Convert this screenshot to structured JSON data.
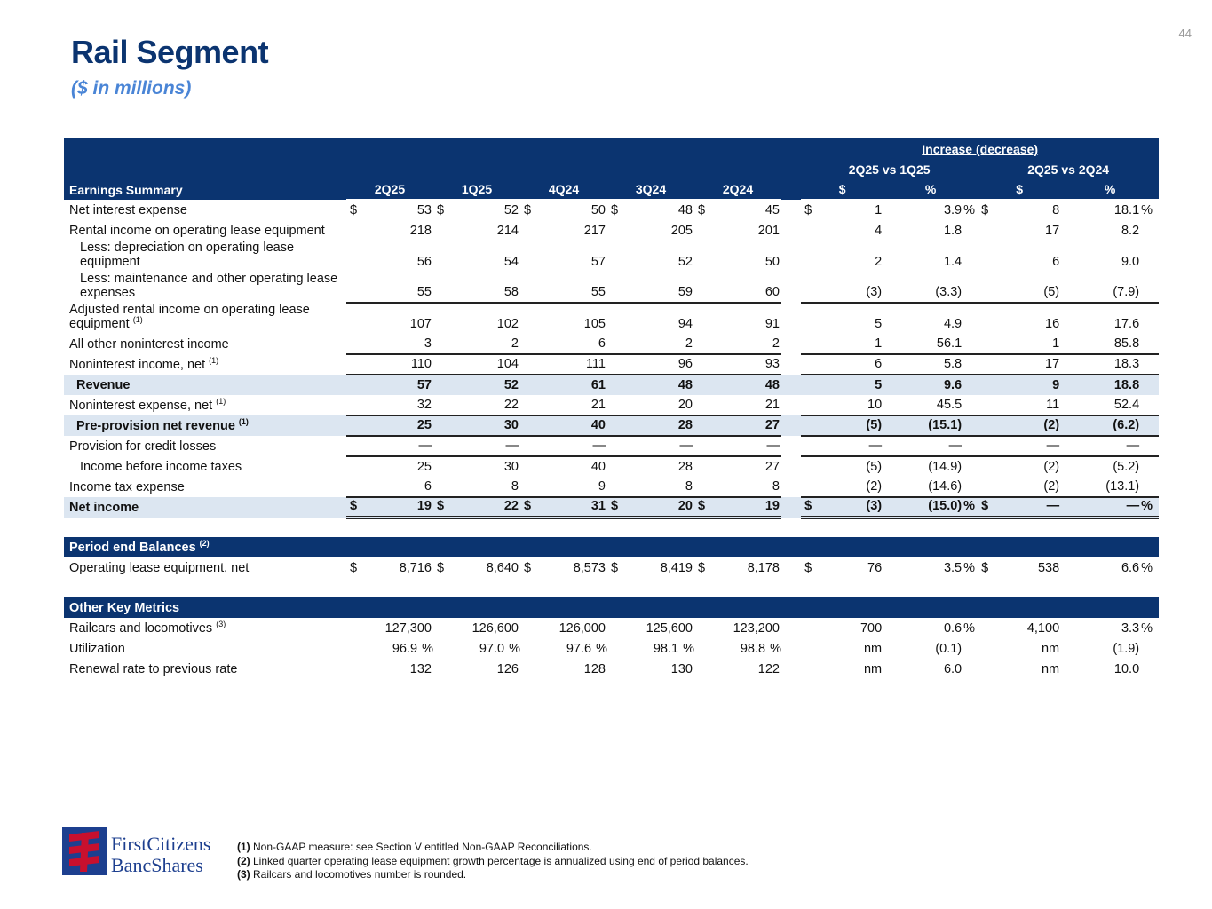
{
  "page_number": "44",
  "title": "Rail Segment",
  "subtitle": "($ in millions)",
  "header": {
    "increase_decrease": "Increase (decrease)",
    "cmp1": "2Q25 vs 1Q25",
    "cmp2": "2Q25 vs 2Q24",
    "section": "Earnings Summary",
    "quarters": [
      "2Q25",
      "1Q25",
      "4Q24",
      "3Q24",
      "2Q24"
    ],
    "dollar": "$",
    "percent": "%"
  },
  "rows": [
    {
      "label": "Net interest expense",
      "dollar": true,
      "vals": [
        "53",
        "52",
        "50",
        "48",
        "45"
      ],
      "cmp": [
        "1",
        "3.9",
        "8",
        "18.1"
      ],
      "pct": true
    },
    {
      "label": "Rental income on operating lease equipment",
      "vals": [
        "218",
        "214",
        "217",
        "205",
        "201"
      ],
      "cmp": [
        "4",
        "1.8",
        "17",
        "8.2"
      ]
    },
    {
      "label": "Less: depreciation on operating lease equipment",
      "indent": true,
      "vals": [
        "56",
        "54",
        "57",
        "52",
        "50"
      ],
      "cmp": [
        "2",
        "1.4",
        "6",
        "9.0"
      ]
    },
    {
      "label": "Less: maintenance and other operating lease expenses",
      "indent": true,
      "bot": true,
      "vals": [
        "55",
        "58",
        "55",
        "59",
        "60"
      ],
      "cmp": [
        "(3)",
        "(3.3)",
        "(5)",
        "(7.9)"
      ]
    },
    {
      "label": "Adjusted rental income on operating lease equipment",
      "sup": "(1)",
      "vals": [
        "107",
        "102",
        "105",
        "94",
        "91"
      ],
      "cmp": [
        "5",
        "4.9",
        "16",
        "17.6"
      ]
    },
    {
      "label": "All other noninterest income",
      "bot": true,
      "vals": [
        "3",
        "2",
        "6",
        "2",
        "2"
      ],
      "cmp": [
        "1",
        "56.1",
        "1",
        "85.8"
      ]
    },
    {
      "label": "Noninterest income, net",
      "sup": "(1)",
      "bot": true,
      "vals": [
        "110",
        "104",
        "111",
        "96",
        "93"
      ],
      "cmp": [
        "6",
        "5.8",
        "17",
        "18.3"
      ]
    },
    {
      "label": "Revenue",
      "hl": true,
      "vals": [
        "57",
        "52",
        "61",
        "48",
        "48"
      ],
      "cmp": [
        "5",
        "9.6",
        "9",
        "18.8"
      ]
    },
    {
      "label": "Noninterest expense, net",
      "sup": "(1)",
      "bot": true,
      "vals": [
        "32",
        "22",
        "21",
        "20",
        "21"
      ],
      "cmp": [
        "10",
        "45.5",
        "11",
        "52.4"
      ]
    },
    {
      "label": "Pre-provision net revenue",
      "sup": "(1)",
      "hl": true,
      "bot": true,
      "vals": [
        "25",
        "30",
        "40",
        "28",
        "27"
      ],
      "cmp": [
        "(5)",
        "(15.1)",
        "(2)",
        "(6.2)"
      ]
    },
    {
      "label": "Provision for credit losses",
      "bot": true,
      "vals": [
        "—",
        "—",
        "—",
        "—",
        "—"
      ],
      "cmp": [
        "—",
        "—",
        "—",
        "—"
      ]
    },
    {
      "label": "Income before income taxes",
      "indent": true,
      "vals": [
        "25",
        "30",
        "40",
        "28",
        "27"
      ],
      "cmp": [
        "(5)",
        "(14.9)",
        "(2)",
        "(5.2)"
      ]
    },
    {
      "label": "Income tax expense",
      "bot": true,
      "vals": [
        "6",
        "8",
        "9",
        "8",
        "8"
      ],
      "cmp": [
        "(2)",
        "(14.6)",
        "(2)",
        "(13.1)"
      ]
    },
    {
      "label": "Net income",
      "hl": true,
      "ni": true,
      "dbl": true,
      "dollar": true,
      "pct": true,
      "vals": [
        "19",
        "22",
        "31",
        "20",
        "19"
      ],
      "cmp": [
        "(3)",
        "(15.0)",
        "—",
        "—"
      ]
    }
  ],
  "balances": {
    "section": "Period end Balances",
    "sup": "(2)",
    "rows": [
      {
        "label": "Operating lease equipment, net",
        "dollar": true,
        "pct": true,
        "vals": [
          "8,716",
          "8,640",
          "8,573",
          "8,419",
          "8,178"
        ],
        "cmp": [
          "76",
          "3.5",
          "538",
          "6.6"
        ]
      }
    ]
  },
  "metrics": {
    "section": "Other Key Metrics",
    "rows": [
      {
        "label": "Railcars and locomotives",
        "sup": "(3)",
        "pct": true,
        "vals": [
          "127,300",
          "126,600",
          "126,000",
          "125,600",
          "123,200"
        ],
        "cmp": [
          "700",
          "0.6",
          "4,100",
          "3.3"
        ]
      },
      {
        "label": "Utilization",
        "qpct": true,
        "vals": [
          "96.9",
          "97.0",
          "97.6",
          "98.1",
          "98.8"
        ],
        "cmp": [
          "nm",
          "(0.1)",
          "nm",
          "(1.9)"
        ]
      },
      {
        "label": "Renewal rate to previous rate",
        "vals": [
          "132",
          "126",
          "128",
          "130",
          "122"
        ],
        "cmp": [
          "nm",
          "6.0",
          "nm",
          "10.0"
        ]
      }
    ]
  },
  "logo": {
    "line1": "FirstCitizens",
    "line2": "BancShares"
  },
  "footnotes": [
    {
      "num": "(1)",
      "text": " Non-GAAP measure: see Section V entitled Non-GAAP Reconciliations."
    },
    {
      "num": "(2)",
      "text": " Linked quarter operating lease equipment growth percentage is annualized using end of period balances."
    },
    {
      "num": "(3)",
      "text": " Railcars and locomotives number is rounded."
    }
  ],
  "colors": {
    "navy": "#0b3470",
    "highlight": "#dce6f1",
    "subtitle": "#4a85d6",
    "logo_red": "#c8102e"
  }
}
